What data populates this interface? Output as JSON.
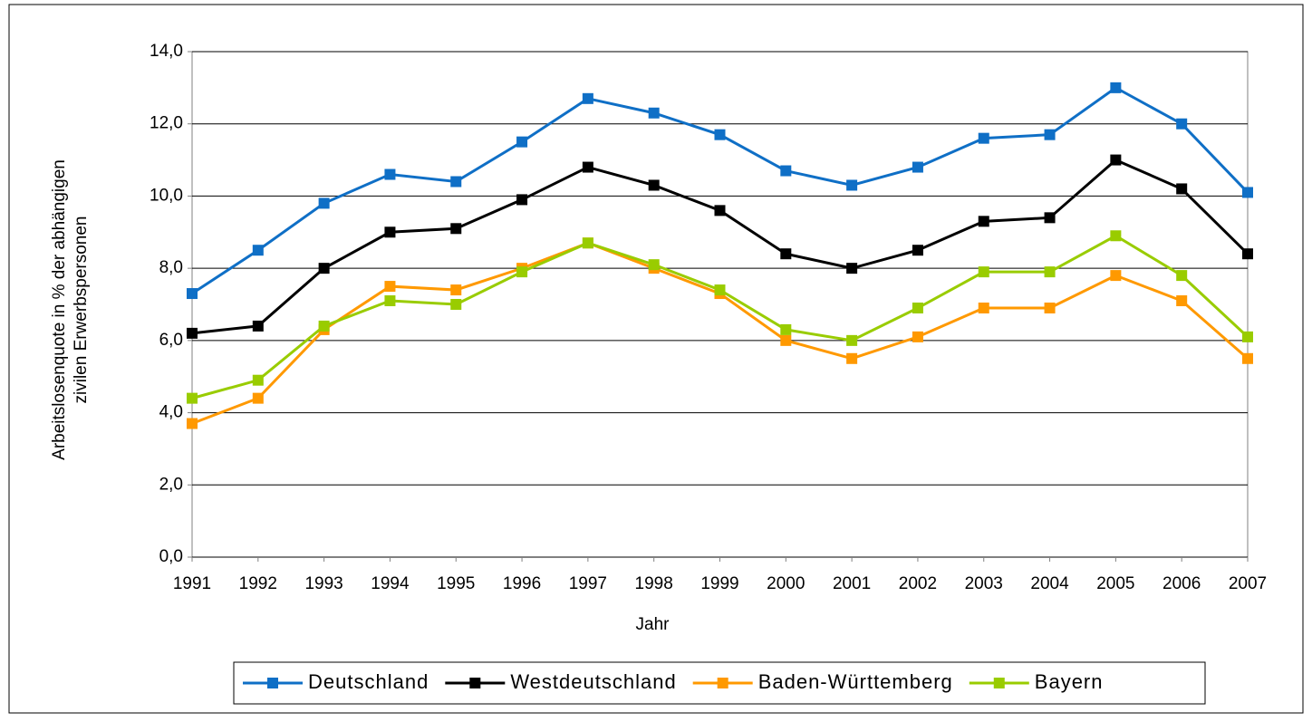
{
  "chart_data": {
    "type": "line",
    "y_label": [
      "Arbeitslosenquote in % der abhängigen",
      "zivilen Erwerbspersonen"
    ],
    "x_label": "Jahr",
    "categories": [
      "1991",
      "1992",
      "1993",
      "1994",
      "1995",
      "1996",
      "1997",
      "1998",
      "1999",
      "2000",
      "2001",
      "2002",
      "2003",
      "2004",
      "2005",
      "2006",
      "2007"
    ],
    "series": [
      {
        "name": "Deutschland",
        "color": "#0f6fc6",
        "values": [
          7.3,
          8.5,
          9.8,
          10.6,
          10.4,
          11.5,
          12.7,
          12.3,
          11.7,
          10.7,
          10.3,
          10.8,
          11.6,
          11.7,
          13.0,
          12.0,
          10.1
        ]
      },
      {
        "name": "Westdeutschland",
        "color": "#000000",
        "values": [
          6.2,
          6.4,
          8.0,
          9.0,
          9.1,
          9.9,
          10.8,
          10.3,
          9.6,
          8.4,
          8.0,
          8.5,
          9.3,
          9.4,
          11.0,
          10.2,
          8.4
        ]
      },
      {
        "name": "Baden-Württemberg",
        "color": "#ff9900",
        "values": [
          3.7,
          4.4,
          6.3,
          7.5,
          7.4,
          8.0,
          8.7,
          8.0,
          7.3,
          6.0,
          5.5,
          6.1,
          6.9,
          6.9,
          7.8,
          7.1,
          5.5
        ]
      },
      {
        "name": "Bayern",
        "color": "#99cc00",
        "values": [
          4.4,
          4.9,
          6.4,
          7.1,
          7.0,
          7.9,
          8.7,
          8.1,
          7.4,
          6.3,
          6.0,
          6.9,
          7.9,
          7.9,
          8.9,
          7.8,
          6.1
        ]
      }
    ],
    "ylim": [
      0,
      14
    ],
    "yticks": [
      {
        "value": 0,
        "label": "0,0"
      },
      {
        "value": 2,
        "label": "2,0"
      },
      {
        "value": 4,
        "label": "4,0"
      },
      {
        "value": 6,
        "label": "6,0"
      },
      {
        "value": 8,
        "label": "8,0"
      },
      {
        "value": 10,
        "label": "10,0"
      },
      {
        "value": 12,
        "label": "12,0"
      },
      {
        "value": 14,
        "label": "14,0"
      }
    ],
    "grid": true,
    "legend": "bottom"
  }
}
